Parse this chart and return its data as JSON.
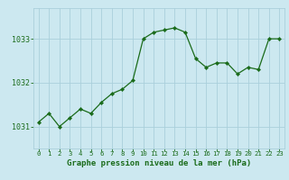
{
  "x": [
    0,
    1,
    2,
    3,
    4,
    5,
    6,
    7,
    8,
    9,
    10,
    11,
    12,
    13,
    14,
    15,
    16,
    17,
    18,
    19,
    20,
    21,
    22,
    23
  ],
  "y": [
    1031.1,
    1031.3,
    1031.0,
    1031.2,
    1031.4,
    1031.3,
    1031.55,
    1031.75,
    1031.85,
    1032.05,
    1033.0,
    1033.15,
    1033.2,
    1033.25,
    1033.15,
    1032.55,
    1032.35,
    1032.45,
    1032.45,
    1032.2,
    1032.35,
    1032.3,
    1033.0,
    1033.0
  ],
  "line_color": "#1a6b1a",
  "marker_color": "#1a6b1a",
  "bg_color": "#cce8f0",
  "grid_color": "#aacfdb",
  "axis_label_color": "#1a6b1a",
  "tick_label_color": "#1a6b1a",
  "xlabel": "Graphe pression niveau de la mer (hPa)",
  "ylim": [
    1030.5,
    1033.7
  ],
  "yticks": [
    1031,
    1032,
    1033
  ],
  "xticks": [
    0,
    1,
    2,
    3,
    4,
    5,
    6,
    7,
    8,
    9,
    10,
    11,
    12,
    13,
    14,
    15,
    16,
    17,
    18,
    19,
    20,
    21,
    22,
    23
  ],
  "xlabel_fontsize": 6.5,
  "xtick_fontsize": 5.2,
  "ytick_fontsize": 6.0
}
